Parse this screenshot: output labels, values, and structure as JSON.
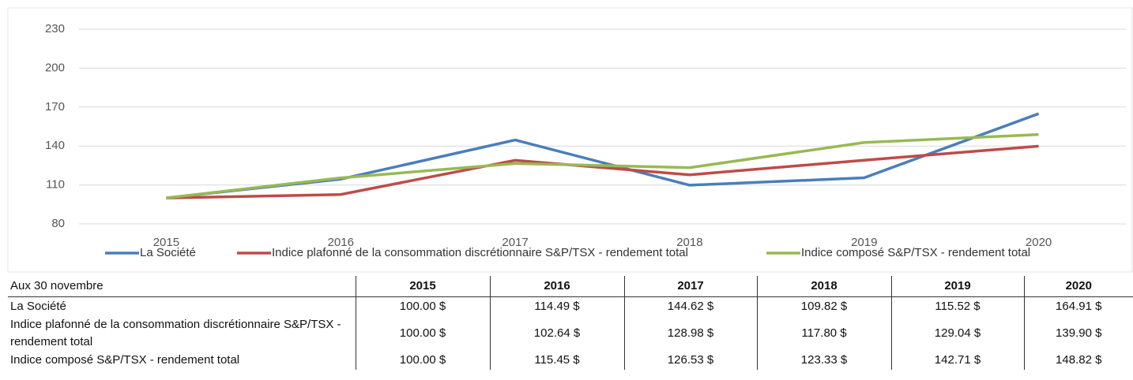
{
  "chart_data": {
    "type": "line",
    "categories": [
      "2015",
      "2016",
      "2017",
      "2018",
      "2019",
      "2020"
    ],
    "series": [
      {
        "name": "La Société",
        "color": "#4a7ebb",
        "values": [
          100,
          114.49,
          144.62,
          109.82,
          115.52,
          164.91
        ]
      },
      {
        "name": "Indice plafonné de la consommation discrétionnaire S&P/TSX - rendement total",
        "color": "#be4b48",
        "values": [
          100,
          102.64,
          128.98,
          117.8,
          129.04,
          139.9
        ]
      },
      {
        "name": "Indice composé S&P/TSX - rendement total",
        "color": "#98b954",
        "values": [
          100,
          115.45,
          126.53,
          123.33,
          142.71,
          148.82
        ]
      }
    ],
    "ylim": [
      80,
      230
    ],
    "yticks": [
      80,
      110,
      140,
      170,
      200,
      230
    ],
    "grid": true,
    "legend": "bottom"
  },
  "table": {
    "header": [
      "Aux 30 novembre",
      "2015",
      "2016",
      "2017",
      "2018",
      "2019",
      "2020"
    ],
    "rows": [
      [
        "La Société",
        "100.00 $",
        "114.49 $",
        "144.62 $",
        "109.82 $",
        "115.52 $",
        "164.91 $"
      ],
      [
        "Indice plafonné de la consommation discrétionnaire S&P/TSX - rendement total",
        "100.00 $",
        "102.64 $",
        "128.98 $",
        "117.80 $",
        "129.04 $",
        "139.90 $"
      ],
      [
        "Indice composé S&P/TSX - rendement total",
        "100.00 $",
        "115.45 $",
        "126.53 $",
        "123.33 $",
        "142.71 $",
        "148.82 $"
      ]
    ]
  }
}
